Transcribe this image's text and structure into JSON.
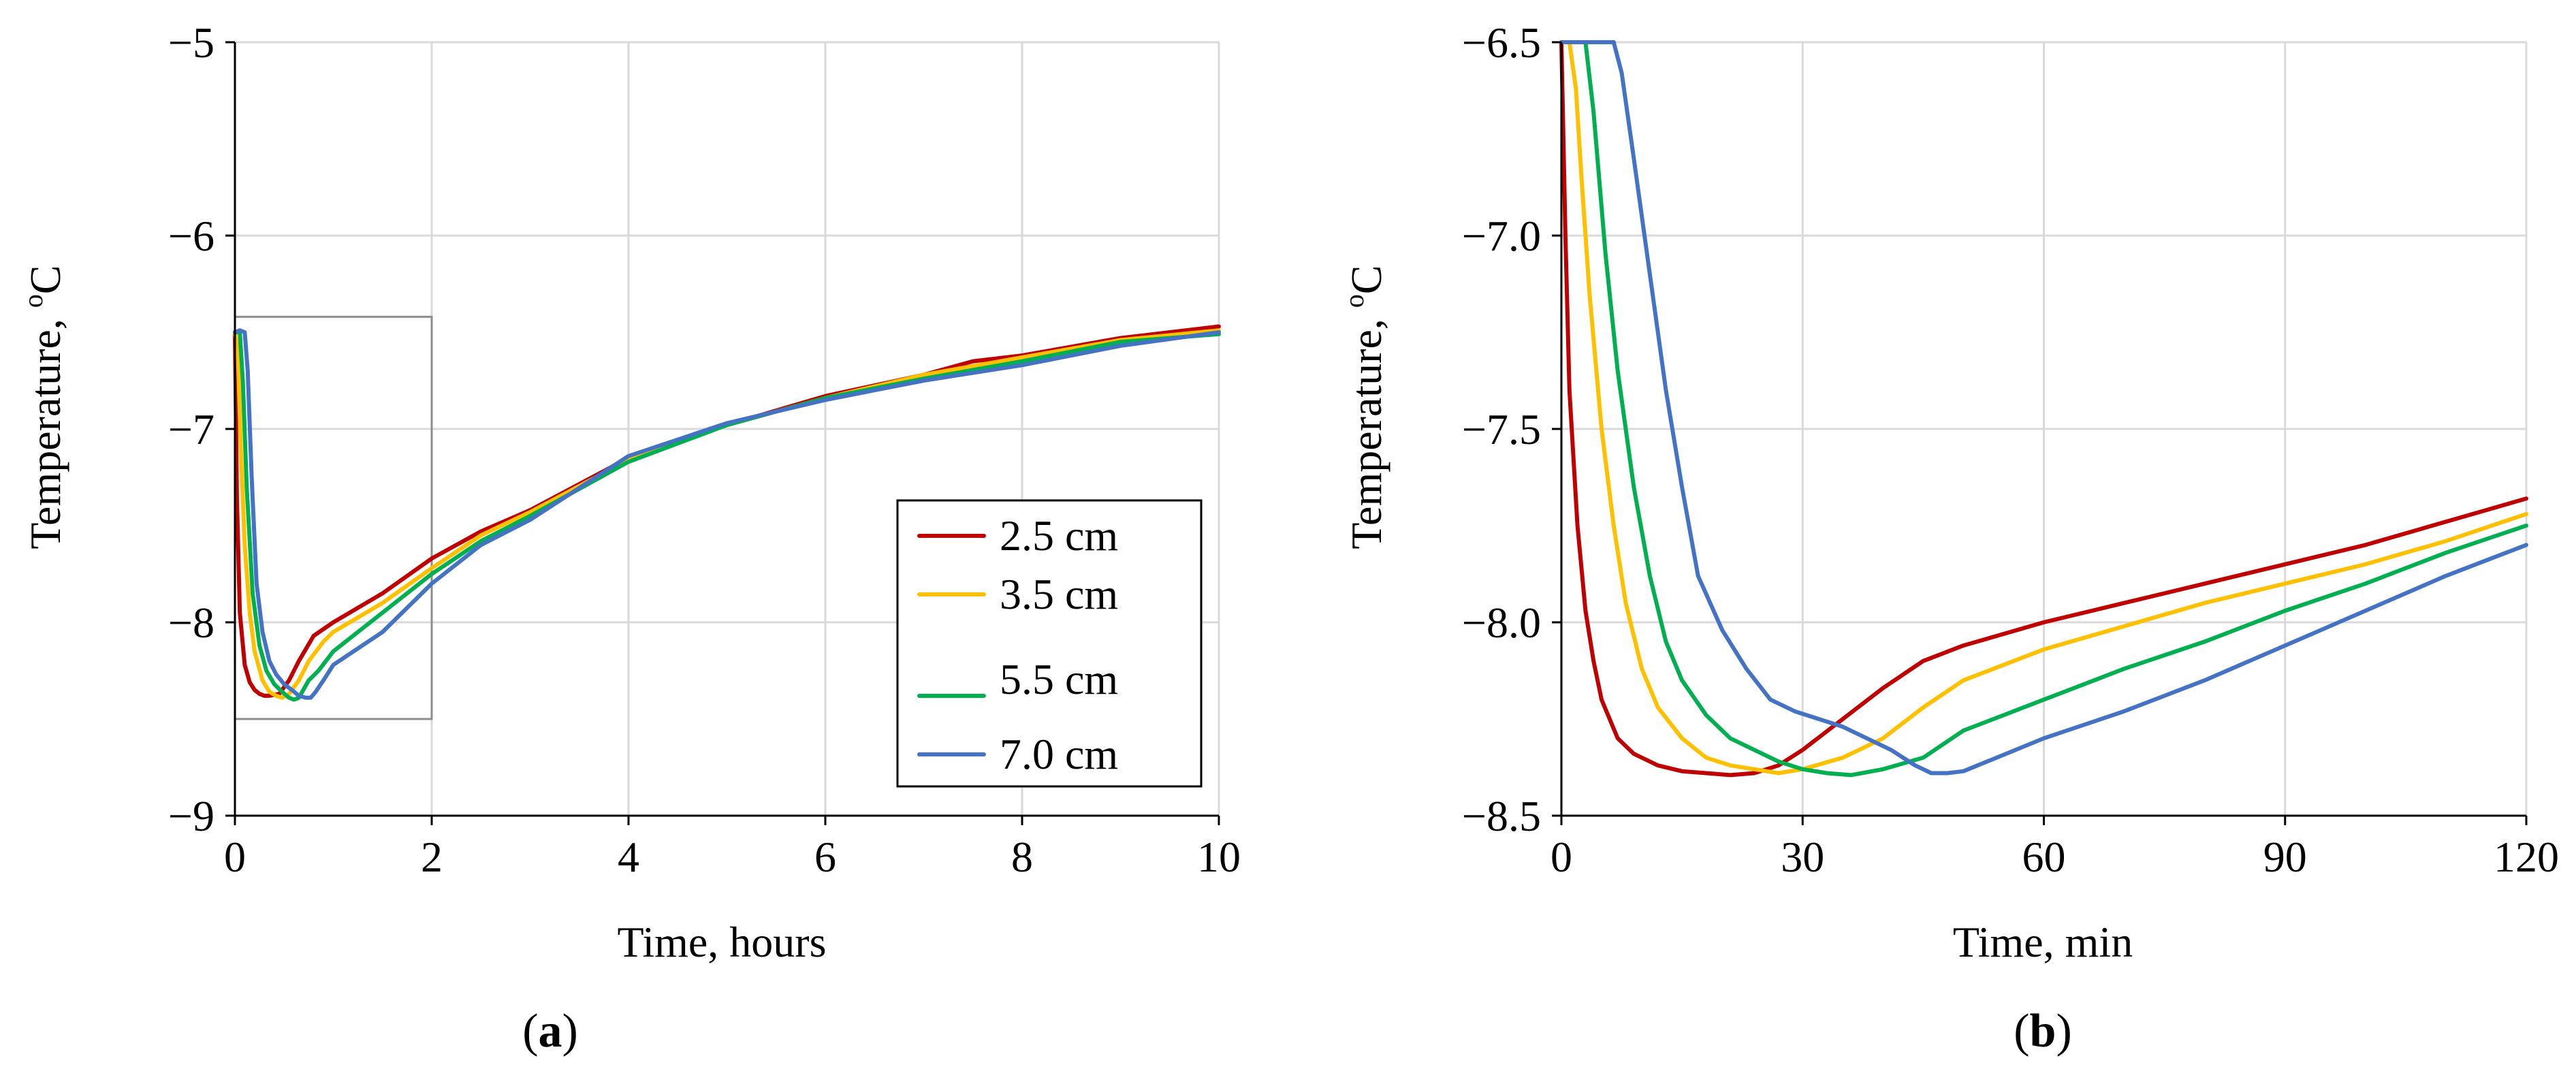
{
  "chart_data": [
    {
      "panel": "a",
      "type": "line",
      "panel_label_open": "(",
      "panel_label_letter": "a",
      "panel_label_close": ")",
      "xlabel": "Time, hours",
      "ylabel_main": "Temperature, ",
      "ylabel_sup": "o",
      "ylabel_unit": "C",
      "xlim": [
        0,
        10
      ],
      "ylim": [
        -9,
        -5
      ],
      "xticks": [
        0,
        2,
        4,
        6,
        8,
        10
      ],
      "yticks": [
        -9,
        -8,
        -7,
        -6,
        -5
      ],
      "xtick_labels": [
        "0",
        "2",
        "4",
        "6",
        "8",
        "10"
      ],
      "ytick_labels": [
        "−9",
        "−8",
        "−7",
        "−6",
        "−5"
      ],
      "grid": true,
      "legend": "bottom-right",
      "zoom_box": {
        "x": [
          0,
          2
        ],
        "y": [
          -8.5,
          -6.42
        ]
      },
      "series": [
        {
          "name": "2.5 cm",
          "color": "#C00000",
          "x": [
            0,
            0.02,
            0.05,
            0.1,
            0.15,
            0.2,
            0.25,
            0.3,
            0.35,
            0.45,
            0.55,
            0.65,
            0.8,
            1.0,
            1.5,
            2.0,
            2.5,
            3.0,
            4.0,
            5.0,
            6.0,
            7.0,
            7.5,
            8.0,
            9.0,
            10.0
          ],
          "y": [
            -6.5,
            -7.35,
            -7.95,
            -8.22,
            -8.31,
            -8.35,
            -8.37,
            -8.38,
            -8.38,
            -8.37,
            -8.3,
            -8.2,
            -8.07,
            -8.0,
            -7.85,
            -7.67,
            -7.53,
            -7.42,
            -7.15,
            -6.98,
            -6.83,
            -6.72,
            -6.65,
            -6.62,
            -6.53,
            -6.47
          ]
        },
        {
          "name": "3.5 cm",
          "color": "#FFC000",
          "x": [
            0,
            0.03,
            0.06,
            0.1,
            0.15,
            0.2,
            0.28,
            0.35,
            0.42,
            0.48,
            0.55,
            0.65,
            0.75,
            0.9,
            1.0,
            1.5,
            2.0,
            2.5,
            3.0,
            4.0,
            5.0,
            6.0,
            7.0,
            8.0,
            9.0,
            10.0
          ],
          "y": [
            -6.5,
            -6.6,
            -7.1,
            -7.6,
            -7.95,
            -8.15,
            -8.3,
            -8.36,
            -8.38,
            -8.39,
            -8.37,
            -8.3,
            -8.2,
            -8.1,
            -8.05,
            -7.9,
            -7.72,
            -7.55,
            -7.43,
            -7.16,
            -6.98,
            -6.84,
            -6.72,
            -6.63,
            -6.54,
            -6.49
          ]
        },
        {
          "name": "5.5 cm",
          "color": "#00B050",
          "x": [
            0,
            0.05,
            0.08,
            0.12,
            0.18,
            0.25,
            0.32,
            0.4,
            0.48,
            0.55,
            0.6,
            0.65,
            0.75,
            0.85,
            1.0,
            1.5,
            2.0,
            2.5,
            3.0,
            4.0,
            5.0,
            6.0,
            7.0,
            8.0,
            9.0,
            10.0
          ],
          "y": [
            -6.5,
            -6.5,
            -6.75,
            -7.3,
            -7.85,
            -8.12,
            -8.25,
            -8.32,
            -8.36,
            -8.39,
            -8.4,
            -8.39,
            -8.3,
            -8.25,
            -8.15,
            -7.95,
            -7.75,
            -7.58,
            -7.45,
            -7.17,
            -6.98,
            -6.84,
            -6.74,
            -6.65,
            -6.55,
            -6.51
          ]
        },
        {
          "name": "7.0 cm",
          "color": "#4472C4",
          "x": [
            0,
            0.05,
            0.1,
            0.13,
            0.17,
            0.22,
            0.28,
            0.35,
            0.42,
            0.5,
            0.58,
            0.65,
            0.72,
            0.77,
            0.82,
            0.9,
            1.0,
            1.5,
            2.0,
            2.5,
            3.0,
            4.0,
            5.0,
            6.0,
            7.0,
            8.0,
            9.0,
            10.0
          ],
          "y": [
            -6.5,
            -6.49,
            -6.5,
            -6.7,
            -7.25,
            -7.8,
            -8.05,
            -8.2,
            -8.27,
            -8.32,
            -8.35,
            -8.38,
            -8.39,
            -8.39,
            -8.36,
            -8.3,
            -8.22,
            -8.05,
            -7.8,
            -7.6,
            -7.47,
            -7.14,
            -6.97,
            -6.85,
            -6.75,
            -6.67,
            -6.57,
            -6.5
          ]
        }
      ]
    },
    {
      "panel": "b",
      "type": "line",
      "panel_label_open": "(",
      "panel_label_letter": "b",
      "panel_label_close": ")",
      "xlabel": "Time, min",
      "ylabel_main": "Temperature, ",
      "ylabel_sup": "o",
      "ylabel_unit": "C",
      "xlim": [
        0,
        120
      ],
      "ylim": [
        -8.5,
        -6.5
      ],
      "xticks": [
        0,
        30,
        60,
        90,
        120
      ],
      "yticks": [
        -8.5,
        -8.0,
        -7.5,
        -7.0,
        -6.5
      ],
      "xtick_labels": [
        "0",
        "30",
        "60",
        "90",
        "120"
      ],
      "ytick_labels": [
        "−8.5",
        "−8.0",
        "−7.5",
        "−7.0",
        "−6.5"
      ],
      "grid": true,
      "legend": "none",
      "series": [
        {
          "name": "2.5 cm",
          "color": "#C00000",
          "x": [
            0,
            0.5,
            1,
            2,
            3,
            4,
            5,
            7,
            9,
            12,
            15,
            18,
            21,
            24,
            27,
            30,
            35,
            40,
            45,
            50,
            60,
            70,
            80,
            90,
            100,
            110,
            120
          ],
          "y": [
            -6.5,
            -7.0,
            -7.4,
            -7.75,
            -7.97,
            -8.1,
            -8.2,
            -8.3,
            -8.34,
            -8.37,
            -8.385,
            -8.39,
            -8.395,
            -8.39,
            -8.37,
            -8.33,
            -8.25,
            -8.17,
            -8.1,
            -8.06,
            -8.0,
            -7.95,
            -7.9,
            -7.85,
            -7.8,
            -7.74,
            -7.68
          ]
        },
        {
          "name": "3.5 cm",
          "color": "#FFC000",
          "x": [
            0,
            1,
            1.8,
            2.5,
            3.5,
            5,
            6.5,
            8,
            10,
            12,
            15,
            18,
            21,
            24,
            27,
            30,
            35,
            40,
            45,
            50,
            60,
            70,
            80,
            90,
            100,
            110,
            120
          ],
          "y": [
            -6.5,
            -6.5,
            -6.62,
            -6.85,
            -7.15,
            -7.5,
            -7.75,
            -7.95,
            -8.12,
            -8.22,
            -8.3,
            -8.35,
            -8.37,
            -8.38,
            -8.39,
            -8.38,
            -8.35,
            -8.3,
            -8.22,
            -8.15,
            -8.07,
            -8.01,
            -7.95,
            -7.9,
            -7.85,
            -7.79,
            -7.72
          ]
        },
        {
          "name": "5.5 cm",
          "color": "#00B050",
          "x": [
            0,
            2,
            3,
            4,
            5.5,
            7,
            9,
            11,
            13,
            15,
            18,
            21,
            24,
            27,
            30,
            33,
            36,
            40,
            45,
            50,
            60,
            70,
            80,
            90,
            100,
            110,
            120
          ],
          "y": [
            -6.5,
            -6.5,
            -6.5,
            -6.68,
            -7.05,
            -7.35,
            -7.65,
            -7.88,
            -8.05,
            -8.15,
            -8.24,
            -8.3,
            -8.33,
            -8.36,
            -8.38,
            -8.39,
            -8.395,
            -8.38,
            -8.35,
            -8.28,
            -8.2,
            -8.12,
            -8.05,
            -7.97,
            -7.9,
            -7.82,
            -7.75
          ]
        },
        {
          "name": "7.0 cm",
          "color": "#4472C4",
          "x": [
            0,
            3,
            5,
            6.5,
            7.5,
            9,
            11,
            13,
            15,
            17,
            20,
            23,
            26,
            29,
            32,
            35,
            38,
            41,
            44,
            46,
            48,
            50,
            60,
            70,
            80,
            90,
            100,
            110,
            120
          ],
          "y": [
            -6.5,
            -6.5,
            -6.5,
            -6.5,
            -6.58,
            -6.8,
            -7.1,
            -7.4,
            -7.65,
            -7.88,
            -8.02,
            -8.12,
            -8.2,
            -8.23,
            -8.25,
            -8.27,
            -8.3,
            -8.33,
            -8.37,
            -8.39,
            -8.39,
            -8.385,
            -8.3,
            -8.23,
            -8.15,
            -8.06,
            -7.97,
            -7.88,
            -7.8
          ]
        }
      ]
    }
  ]
}
